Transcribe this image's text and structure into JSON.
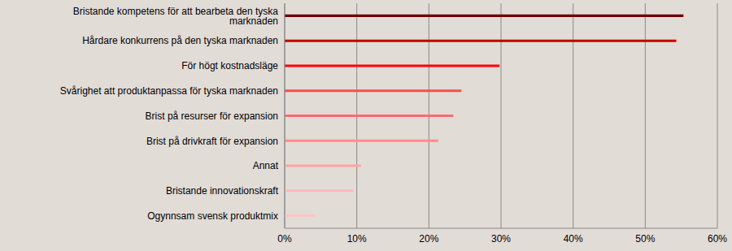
{
  "chart_data": {
    "type": "bar",
    "orientation": "horizontal",
    "categories": [
      "Bristande kompetens för att bearbeta den tyska marknaden",
      "Hårdare konkurrens på den tyska marknaden",
      "För högt kostnadsläge",
      "Svårighet att produktanpassa för tyska marknaden",
      "Brist på resurser för expansion",
      "Brist på drivkraft för expansion",
      "Annat",
      "Bristande innovationskraft",
      "Ogynnsam svensk produktmix"
    ],
    "values": [
      55.3,
      54.3,
      29.8,
      24.5,
      23.4,
      21.3,
      10.6,
      9.5,
      4.2
    ],
    "colors": [
      "#6e0000",
      "#c00000",
      "#ff0000",
      "#ff4a4a",
      "#ff6a6a",
      "#ff8c8c",
      "#ffa4a4",
      "#ffb8b8",
      "#ffc4c4"
    ],
    "xlim": [
      0,
      60
    ],
    "xticks": [
      {
        "value": 0,
        "label": "0%"
      },
      {
        "value": 10,
        "label": "10%"
      },
      {
        "value": 20,
        "label": "20%"
      },
      {
        "value": 30,
        "label": "30%"
      },
      {
        "value": 40,
        "label": "40%"
      },
      {
        "value": 50,
        "label": "50%"
      },
      {
        "value": 60,
        "label": "60%"
      }
    ],
    "grid": true
  }
}
